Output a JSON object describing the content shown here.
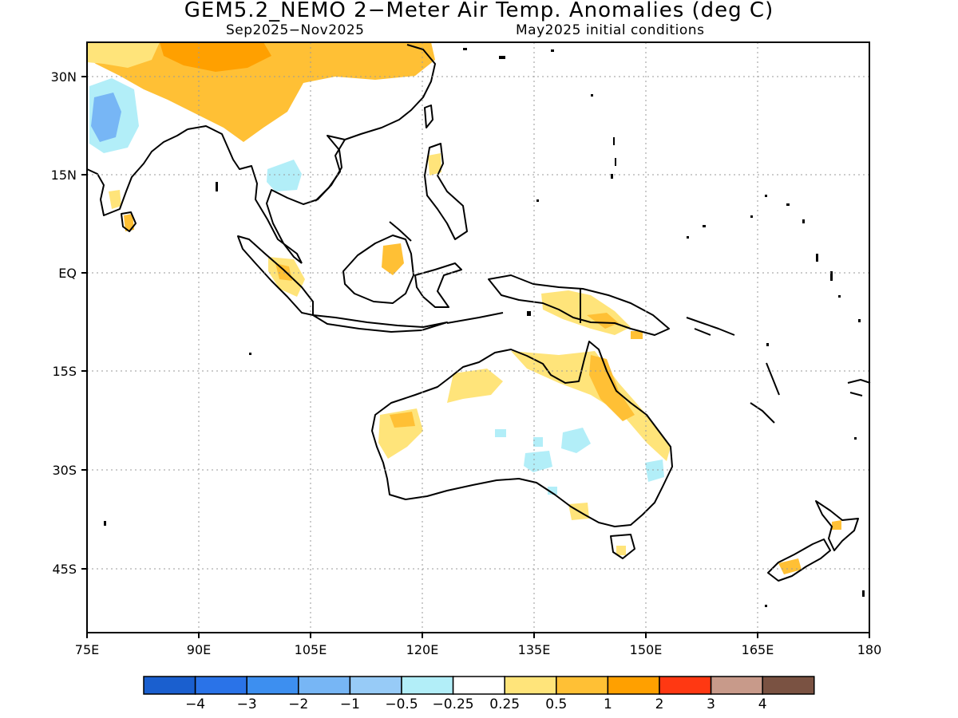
{
  "title": "GEM5.2_NEMO 2−Meter Air Temp. Anomalies (deg C)",
  "subtitle_left": "Sep2025−Nov2025",
  "subtitle_right": "May2025 initial conditions",
  "lat_ticks": [
    "30N",
    "15N",
    "EQ",
    "15S",
    "30S",
    "45S"
  ],
  "lon_ticks": [
    "75E",
    "90E",
    "105E",
    "120E",
    "135E",
    "150E",
    "165E",
    "180"
  ],
  "map": {
    "lon_range": [
      75,
      180
    ],
    "lat_range": [
      -55,
      35
    ],
    "grid": "dotted",
    "projection": "lat-lon"
  },
  "colorbar": {
    "colors": [
      "#1a5fcf",
      "#2a73e8",
      "#3d8ff0",
      "#77b6f5",
      "#97cbf7",
      "#b2eef8",
      "#ffffff",
      "#ffe47a",
      "#ffc035",
      "#ffa000",
      "#ff3812",
      "#c89a8a",
      "#7a5242"
    ],
    "labels": [
      "−4",
      "−3",
      "−2",
      "−1",
      "−0.5",
      "−0.25",
      "0.25",
      "0.5",
      "1",
      "2",
      "3",
      "4"
    ]
  },
  "anomaly_colors": {
    "warm_light": "#ffe47a",
    "warm": "#ffc035",
    "warm_strong": "#ffa000",
    "cool_light": "#b2eef8",
    "cool": "#97cbf7",
    "cool_strong": "#77b6f5"
  }
}
